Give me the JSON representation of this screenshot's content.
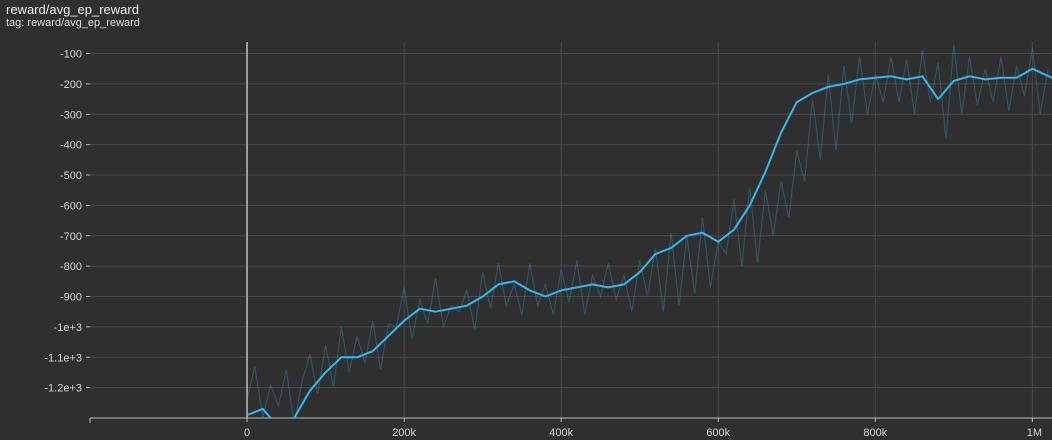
{
  "header": {
    "title": "reward/avg_ep_reward",
    "subtitle": "tag: reward/avg_ep_reward"
  },
  "colors": {
    "background": "#2f2f2f",
    "grid": "#4a4a4a",
    "smoothed_line": "#33b7ee",
    "raw_line": "#33b7ee",
    "axis": "#bdbdbd"
  },
  "chart_data": {
    "type": "line",
    "title": "reward/avg_ep_reward",
    "xlabel": "",
    "ylabel": "",
    "xlim": [
      -200000,
      1025000
    ],
    "ylim": [
      -1300,
      -62
    ],
    "x_ticks": [
      {
        "value": 0,
        "label": "0"
      },
      {
        "value": 200000,
        "label": "200k"
      },
      {
        "value": 400000,
        "label": "400k"
      },
      {
        "value": 600000,
        "label": "600k"
      },
      {
        "value": 800000,
        "label": "800k"
      },
      {
        "value": 1000000,
        "label": "1M"
      }
    ],
    "y_ticks": [
      {
        "value": -100,
        "label": "-100"
      },
      {
        "value": -200,
        "label": "-200"
      },
      {
        "value": -300,
        "label": "-300"
      },
      {
        "value": -400,
        "label": "-400"
      },
      {
        "value": -500,
        "label": "-500"
      },
      {
        "value": -600,
        "label": "-600"
      },
      {
        "value": -700,
        "label": "-700"
      },
      {
        "value": -800,
        "label": "-800"
      },
      {
        "value": -900,
        "label": "-900"
      },
      {
        "value": -1000,
        "label": "-1e+3"
      },
      {
        "value": -1100,
        "label": "-1.1e+3"
      },
      {
        "value": -1200,
        "label": "-1.2e+3"
      }
    ],
    "grid": true,
    "legend": "none",
    "series": [
      {
        "x": [
          0,
          20000,
          40000,
          60000,
          80000,
          100000,
          120000,
          140000,
          160000,
          180000,
          200000,
          220000,
          240000,
          260000,
          280000,
          300000,
          320000,
          340000,
          360000,
          380000,
          400000,
          420000,
          440000,
          460000,
          480000,
          500000,
          520000,
          540000,
          560000,
          580000,
          600000,
          620000,
          640000,
          660000,
          680000,
          700000,
          720000,
          740000,
          760000,
          780000,
          800000,
          820000,
          840000,
          860000,
          880000,
          900000,
          920000,
          940000,
          960000,
          980000,
          1000000,
          1025000
        ],
        "y": [
          -1290,
          -1270,
          -1330,
          -1300,
          -1210,
          -1150,
          -1100,
          -1100,
          -1080,
          -1030,
          -980,
          -940,
          -950,
          -940,
          -930,
          -900,
          -860,
          -850,
          -880,
          -900,
          -880,
          -870,
          -860,
          -870,
          -860,
          -820,
          -760,
          -740,
          -700,
          -690,
          -720,
          -680,
          -600,
          -490,
          -360,
          -260,
          -230,
          -210,
          -200,
          -185,
          -180,
          -175,
          -185,
          -175,
          -250,
          -190,
          -175,
          -185,
          -180,
          -180,
          -150,
          -180
        ]
      },
      {
        "x": [
          0,
          10000,
          20000,
          30000,
          40000,
          50000,
          60000,
          70000,
          80000,
          90000,
          100000,
          110000,
          120000,
          130000,
          140000,
          150000,
          160000,
          170000,
          180000,
          190000,
          200000,
          210000,
          220000,
          230000,
          240000,
          250000,
          260000,
          270000,
          280000,
          290000,
          300000,
          310000,
          320000,
          330000,
          340000,
          350000,
          360000,
          370000,
          380000,
          390000,
          400000,
          410000,
          420000,
          430000,
          440000,
          450000,
          460000,
          470000,
          480000,
          490000,
          500000,
          510000,
          520000,
          530000,
          540000,
          550000,
          560000,
          570000,
          580000,
          590000,
          600000,
          610000,
          620000,
          630000,
          640000,
          650000,
          660000,
          670000,
          680000,
          690000,
          700000,
          710000,
          720000,
          730000,
          740000,
          750000,
          760000,
          770000,
          780000,
          790000,
          800000,
          810000,
          820000,
          830000,
          840000,
          850000,
          860000,
          870000,
          880000,
          890000,
          900000,
          910000,
          920000,
          930000,
          940000,
          950000,
          960000,
          970000,
          980000,
          990000,
          1000000,
          1010000,
          1020000
        ],
        "y": [
          -1240,
          -1130,
          -1300,
          -1190,
          -1260,
          -1140,
          -1320,
          -1180,
          -1090,
          -1220,
          -1060,
          -1200,
          -1000,
          -1150,
          -1030,
          -1120,
          -980,
          -1140,
          -990,
          -1000,
          -870,
          -1040,
          -910,
          -990,
          -840,
          -1000,
          -930,
          -950,
          -880,
          -1010,
          -820,
          -940,
          -790,
          -930,
          -860,
          -960,
          -790,
          -930,
          -860,
          -960,
          -810,
          -920,
          -780,
          -960,
          -830,
          -900,
          -790,
          -910,
          -830,
          -950,
          -780,
          -900,
          -740,
          -950,
          -690,
          -930,
          -700,
          -890,
          -640,
          -870,
          -720,
          -760,
          -580,
          -800,
          -540,
          -790,
          -550,
          -700,
          -520,
          -640,
          -420,
          -520,
          -250,
          -450,
          -170,
          -420,
          -140,
          -330,
          -110,
          -300,
          -170,
          -260,
          -110,
          -260,
          -120,
          -300,
          -90,
          -260,
          -130,
          -380,
          -70,
          -300,
          -110,
          -270,
          -150,
          -260,
          -110,
          -290,
          -140,
          -240,
          -80,
          -300,
          -150
        ]
      }
    ]
  }
}
